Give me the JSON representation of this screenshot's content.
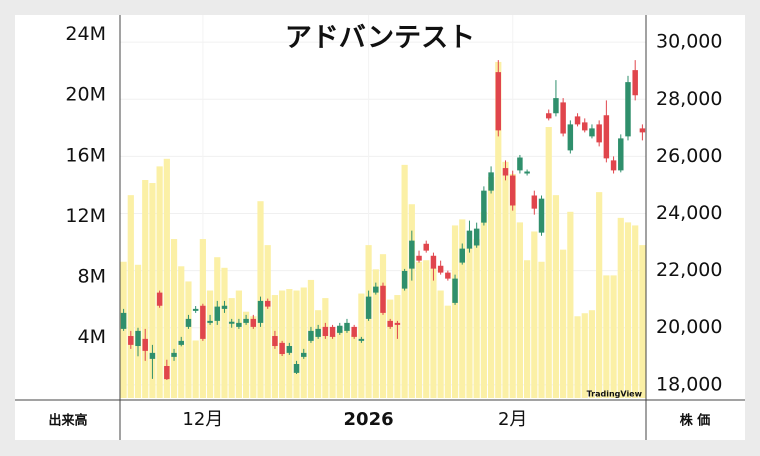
{
  "chart_data": {
    "type": "candlestick",
    "title": "アドバンテスト",
    "y_label": "出来高",
    "y2_label": "株 価",
    "watermark": "TradingView",
    "grid": true,
    "categories": [
      null,
      null,
      null,
      null,
      null,
      null,
      null,
      null,
      null,
      null,
      null,
      "12月",
      null,
      null,
      null,
      null,
      null,
      null,
      null,
      null,
      null,
      null,
      null,
      null,
      null,
      null,
      null,
      null,
      null,
      null,
      null,
      null,
      null,
      null,
      "2026",
      null,
      null,
      null,
      null,
      null,
      null,
      null,
      null,
      null,
      null,
      null,
      null,
      null,
      null,
      null,
      null,
      null,
      null,
      null,
      "2月",
      null,
      null,
      null,
      null,
      null,
      null,
      null,
      null,
      null,
      null,
      null,
      null,
      null,
      null,
      null,
      null,
      null,
      null
    ],
    "ylim": [
      0,
      25300000
    ],
    "yticks": [
      {
        "value": 4000000,
        "label": "4M"
      },
      {
        "value": 8000000,
        "label": "8M"
      },
      {
        "value": 12000000,
        "label": "12M"
      },
      {
        "value": 16000000,
        "label": "16M"
      },
      {
        "value": 20000000,
        "label": "20M"
      },
      {
        "value": 24000000,
        "label": "24M"
      }
    ],
    "y2lim": [
      17540,
      30950
    ],
    "y2ticks": [
      {
        "value": 18000,
        "label": "18,000"
      },
      {
        "value": 20000,
        "label": "20,000"
      },
      {
        "value": 22000,
        "label": "22,000"
      },
      {
        "value": 24000,
        "label": "24,000"
      },
      {
        "value": 26000,
        "label": "26,000"
      },
      {
        "value": 28000,
        "label": "28,000"
      },
      {
        "value": 30000,
        "label": "30,000"
      }
    ],
    "volume": {
      "color": "#fbf0a6",
      "values": [
        9000000,
        13400000,
        8800000,
        14400000,
        14200000,
        15300000,
        15800000,
        10500000,
        8700000,
        7700000,
        3800000,
        10500000,
        7100000,
        9300000,
        8600000,
        6600000,
        7100000,
        5700000,
        5400000,
        13000000,
        10100000,
        6800000,
        7100000,
        7200000,
        7100000,
        7300000,
        7800000,
        5800000,
        6600000,
        4100000,
        4500000,
        4500000,
        4200000,
        6900000,
        10100000,
        8500000,
        9500000,
        6500000,
        6800000,
        15400000,
        12800000,
        9000000,
        9100000,
        8600000,
        7100000,
        6100000,
        11400000,
        11800000,
        9900000,
        10500000,
        12300000,
        14600000,
        22200000,
        15600000,
        14800000,
        11600000,
        9100000,
        11000000,
        9000000,
        17900000,
        13400000,
        9800000,
        12300000,
        5400000,
        5600000,
        5800000,
        13600000,
        8100000,
        8100000,
        11900000,
        11600000,
        11400000,
        10100000
      ]
    },
    "ohlc": {
      "up_color": "#2f8f6c",
      "down_color": "#e0454c",
      "open": [
        19960,
        19710,
        19360,
        19610,
        18910,
        21230,
        18660,
        18980,
        19400,
        20030,
        20590,
        20770,
        20170,
        20240,
        20660,
        20140,
        20030,
        20170,
        20310,
        20170,
        20940,
        19710,
        19470,
        19120,
        18420,
        18980,
        19540,
        19680,
        20030,
        20030,
        19820,
        19890,
        20030,
        19540,
        20310,
        21230,
        21470,
        20240,
        20170,
        21370,
        22070,
        22520,
        22940,
        22520,
        22170,
        21930,
        20870,
        22280,
        22770,
        22880,
        23680,
        24800,
        28950,
        25590,
        25330,
        25510,
        25400,
        24630,
        23330,
        27510,
        27510,
        27890,
        26210,
        27400,
        27190,
        26700,
        27120,
        27440,
        25860,
        25510,
        26700,
        29020,
        26980
      ],
      "high": [
        20660,
        19890,
        20000,
        19960,
        19400,
        21300,
        18880,
        19260,
        19680,
        20450,
        20760,
        20840,
        20450,
        20940,
        20940,
        20310,
        20310,
        20450,
        20450,
        21090,
        21020,
        19890,
        19540,
        19470,
        18840,
        19260,
        20030,
        20100,
        20170,
        20100,
        20170,
        20310,
        20100,
        19680,
        21300,
        21580,
        21580,
        20310,
        20240,
        22060,
        23400,
        22700,
        23050,
        22630,
        22350,
        22000,
        21860,
        22950,
        23750,
        23680,
        24950,
        25650,
        29370,
        25860,
        25500,
        26050,
        25540,
        24800,
        24630,
        27640,
        28670,
        28040,
        27260,
        27510,
        27330,
        27120,
        27260,
        27960,
        26000,
        26770,
        28820,
        29370,
        27120
      ],
      "low": [
        19890,
        19260,
        19000,
        18840,
        18210,
        20700,
        18170,
        18840,
        19350,
        19960,
        20520,
        19540,
        20100,
        20100,
        20520,
        20000,
        19960,
        20100,
        19960,
        20030,
        20660,
        19260,
        19010,
        19050,
        18380,
        18910,
        19470,
        19610,
        19610,
        19610,
        19750,
        19820,
        19610,
        19470,
        20240,
        21160,
        20450,
        19960,
        19610,
        21300,
        21650,
        22280,
        22630,
        21650,
        21860,
        21650,
        20800,
        22210,
        22630,
        22800,
        23580,
        24700,
        26700,
        25160,
        24100,
        25400,
        25330,
        23960,
        23220,
        27260,
        27400,
        26700,
        26100,
        27050,
        26840,
        26630,
        26350,
        25790,
        25400,
        25440,
        26560,
        27960,
        26560
      ],
      "close": [
        20520,
        19400,
        19890,
        19190,
        19120,
        20770,
        18200,
        19120,
        19540,
        20310,
        20660,
        19610,
        20240,
        20740,
        20770,
        20210,
        20170,
        20310,
        20030,
        20940,
        20740,
        19360,
        19080,
        19360,
        18730,
        19120,
        19890,
        19960,
        19710,
        19680,
        20070,
        20170,
        19680,
        19610,
        21090,
        21440,
        20520,
        20030,
        20100,
        21990,
        23050,
        22350,
        22700,
        22070,
        21930,
        21720,
        21720,
        22770,
        23400,
        23470,
        24800,
        25440,
        26910,
        25330,
        24280,
        25960,
        25470,
        24170,
        24520,
        27330,
        28040,
        26800,
        27120,
        27120,
        26910,
        26980,
        26490,
        25930,
        25510,
        26630,
        28600,
        28140,
        26840
      ]
    }
  }
}
